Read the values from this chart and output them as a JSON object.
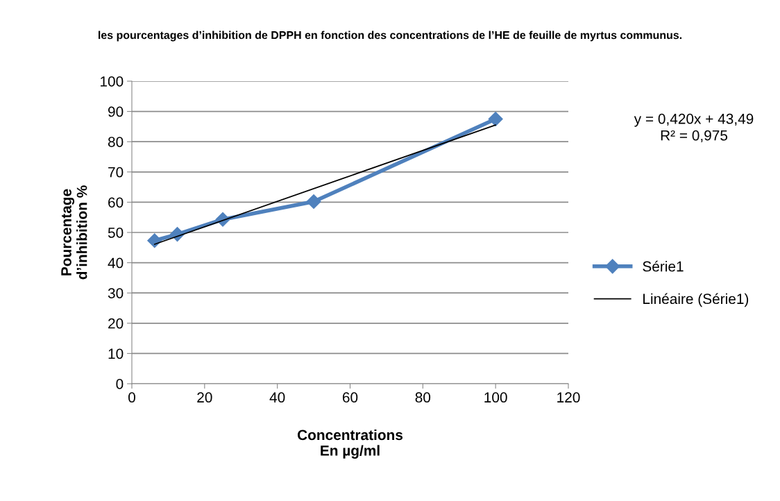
{
  "chart_data": {
    "type": "line",
    "title": "les pourcentages d’inhibition de DPPH en fonction des concentrations de l’HE de feuille de myrtus communus.",
    "xlabel": "Concentrations\nEn µg/ml",
    "ylabel": "Pourcentage\nd’inhibition %",
    "annotations": [
      "y = 0,420x + 43,49\nR² = 0,975"
    ],
    "series": [
      {
        "name": "Série1",
        "color": "#4f81bd",
        "x": [
          6.25,
          12.5,
          25,
          50,
          100
        ],
        "values": [
          47.3,
          49.4,
          54.3,
          60.2,
          87.5
        ],
        "marker": "diamond"
      },
      {
        "name": "Linéaire (Série1)",
        "color": "#000000",
        "x": [
          6.25,
          100
        ],
        "values": [
          46.1,
          85.5
        ],
        "marker": "none"
      }
    ],
    "xlim": [
      0,
      120
    ],
    "xticks": [
      0,
      20,
      40,
      60,
      80,
      100,
      120
    ],
    "ylim": [
      0,
      100
    ],
    "yticks": [
      0,
      10,
      20,
      30,
      40,
      50,
      60,
      70,
      80,
      90,
      100
    ],
    "grid": "y",
    "legend": "right"
  }
}
